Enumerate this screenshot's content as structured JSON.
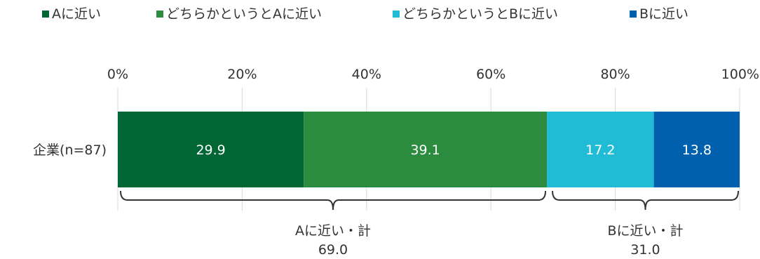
{
  "chart_data": {
    "type": "bar",
    "orientation": "horizontal",
    "stacked": "percent",
    "categories": [
      "企業(n=87)"
    ],
    "series": [
      {
        "name": "Aに近い",
        "values": [
          29.9
        ],
        "color": "#006633"
      },
      {
        "name": "どちらかというとAに近い",
        "values": [
          39.1
        ],
        "color": "#2B8C3F"
      },
      {
        "name": "どちらかというとBに近い",
        "values": [
          17.2
        ],
        "color": "#22BBD6"
      },
      {
        "name": "Bに近い",
        "values": [
          13.8
        ],
        "color": "#0060AE"
      }
    ],
    "xlim": [
      0,
      100
    ],
    "ticks": [
      "0%",
      "20%",
      "40%",
      "60%",
      "80%",
      "100%"
    ],
    "legend_position": "top",
    "grid": true,
    "annotations": [
      {
        "label": "Aに近い・計",
        "value": "69.0"
      },
      {
        "label": "Bに近い・計",
        "value": "31.0"
      }
    ]
  }
}
